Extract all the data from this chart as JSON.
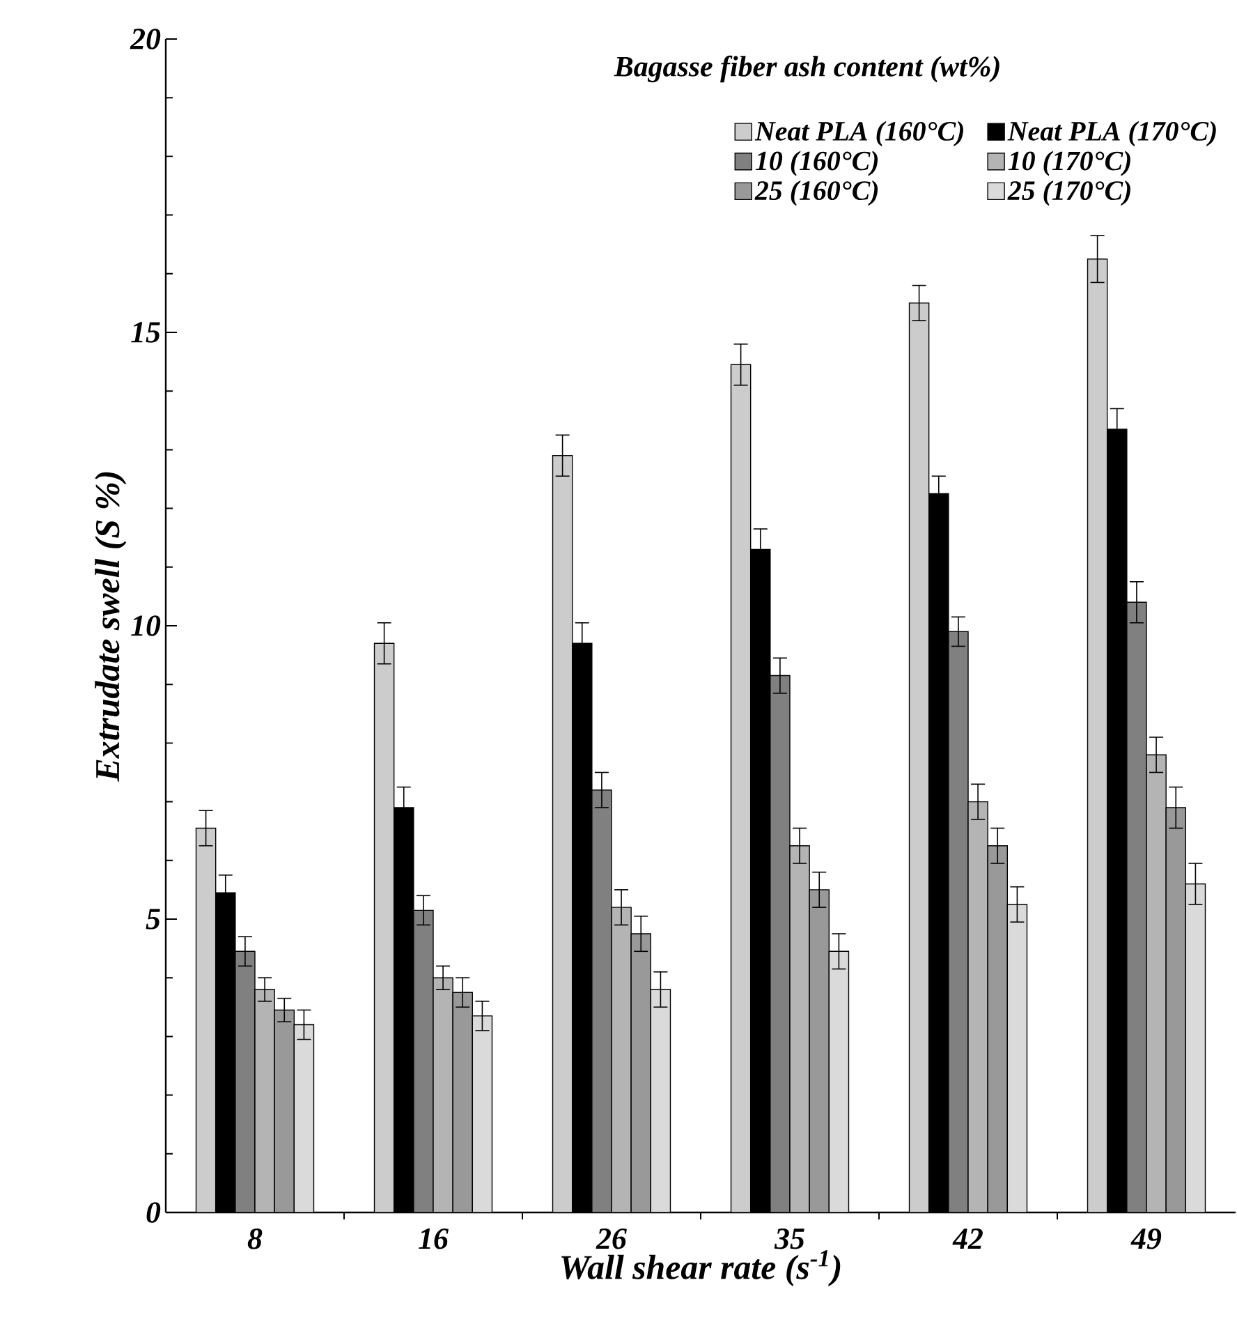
{
  "chart_data": {
    "type": "bar",
    "xlabel": "Wall shear rate (s$^{-1}$)",
    "ylabel": "Extrudate swell (S %)",
    "legend_title": "Bagasse fiber ash content (wt%)",
    "categories": [
      "8",
      "16",
      "26",
      "35",
      "42",
      "49"
    ],
    "series": [
      {
        "name": "Neat PLA  (160°C)",
        "color": "#cccccc",
        "values": [
          6.55,
          9.7,
          12.9,
          14.45,
          15.5,
          16.25
        ],
        "errors": [
          0.3,
          0.35,
          0.35,
          0.35,
          0.3,
          0.4
        ]
      },
      {
        "name": "Neat PLA  (170°C)",
        "color": "#000000",
        "values": [
          5.45,
          6.9,
          9.7,
          11.3,
          12.25,
          13.35
        ],
        "errors": [
          0.3,
          0.35,
          0.35,
          0.35,
          0.3,
          0.35
        ]
      },
      {
        "name": "10 (160°C)",
        "color": "#808080",
        "values": [
          4.45,
          5.15,
          7.2,
          9.15,
          9.9,
          10.4
        ],
        "errors": [
          0.25,
          0.25,
          0.3,
          0.3,
          0.25,
          0.35
        ]
      },
      {
        "name": "10 (170°C)",
        "color": "#b4b4b4",
        "values": [
          3.8,
          4.0,
          5.2,
          6.25,
          7.0,
          7.8
        ],
        "errors": [
          0.2,
          0.2,
          0.3,
          0.3,
          0.3,
          0.3
        ]
      },
      {
        "name": "25 (160°C)",
        "color": "#999999",
        "values": [
          3.45,
          3.75,
          4.75,
          5.5,
          6.25,
          6.9
        ],
        "errors": [
          0.2,
          0.25,
          0.3,
          0.3,
          0.3,
          0.35
        ]
      },
      {
        "name": "25 (170°C)",
        "color": "#dadada",
        "values": [
          3.2,
          3.35,
          3.8,
          4.45,
          5.25,
          5.6
        ],
        "errors": [
          0.25,
          0.25,
          0.3,
          0.3,
          0.3,
          0.35
        ]
      }
    ],
    "ylim": [
      0,
      20
    ],
    "yticks": [
      0,
      5,
      10,
      15,
      20
    ],
    "legend": "top right"
  }
}
